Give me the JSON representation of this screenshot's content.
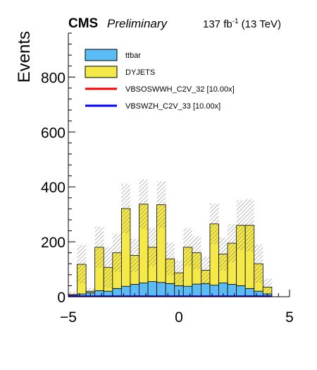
{
  "header": {
    "experiment": "CMS",
    "status": "Preliminary",
    "lumi_value": "137 fb",
    "lumi_exp": "-1",
    "energy": "(13 TeV)"
  },
  "chart_data": {
    "type": "area",
    "stacked": true,
    "xlabel": "",
    "ylabel": "Events",
    "xlim": [
      -5,
      5
    ],
    "ylim": [
      0,
      960
    ],
    "x_ticks": [
      -5,
      0,
      5
    ],
    "y_ticks": [
      0,
      200,
      400,
      600,
      800
    ],
    "bin_edges": [
      -5.0,
      -4.6,
      -4.2,
      -3.8,
      -3.4,
      -3.0,
      -2.6,
      -2.2,
      -1.8,
      -1.4,
      -1.0,
      -0.6,
      -0.2,
      0.2,
      0.6,
      1.0,
      1.4,
      1.8,
      2.2,
      2.6,
      3.0,
      3.4,
      3.8,
      4.2
    ],
    "series": [
      {
        "name": "ttbar",
        "color": "#5bbcf5",
        "values": [
          5,
          10,
          15,
          22,
          20,
          30,
          38,
          45,
          50,
          55,
          52,
          48,
          40,
          38,
          46,
          48,
          42,
          50,
          45,
          40,
          30,
          20,
          10
        ]
      },
      {
        "name": "DYJETS",
        "color": "#f5e94a",
        "values": [
          3,
          108,
          5,
          158,
          87,
          130,
          283,
          105,
          287,
          125,
          283,
          90,
          47,
          142,
          114,
          48,
          223,
          105,
          150,
          220,
          230,
          100,
          25
        ]
      },
      {
        "name": "VBSOSWWH_C2V_32 [10.00x]",
        "color": "#ff0000",
        "line_width": 2,
        "values": [
          1,
          1,
          1,
          1,
          1,
          1,
          1,
          1,
          1,
          1,
          1,
          1,
          1,
          1,
          1,
          1,
          1,
          1,
          1,
          1,
          1,
          1,
          1
        ]
      },
      {
        "name": "VBSWZH_C2V_33 [10.00x]",
        "color": "#0000ff",
        "line_width": 2,
        "values": [
          2,
          2,
          2,
          2,
          2,
          2,
          2,
          2,
          2,
          2,
          2,
          2,
          2,
          2,
          2,
          2,
          2,
          2,
          2,
          2,
          2,
          2,
          2
        ]
      }
    ],
    "uncertainty": {
      "hatched": true,
      "values": [
        10,
        70,
        12,
        75,
        75,
        70,
        90,
        60,
        90,
        70,
        85,
        60,
        45,
        70,
        60,
        50,
        75,
        60,
        70,
        90,
        95,
        70,
        30
      ]
    },
    "legend": {
      "position": "top-left"
    }
  }
}
